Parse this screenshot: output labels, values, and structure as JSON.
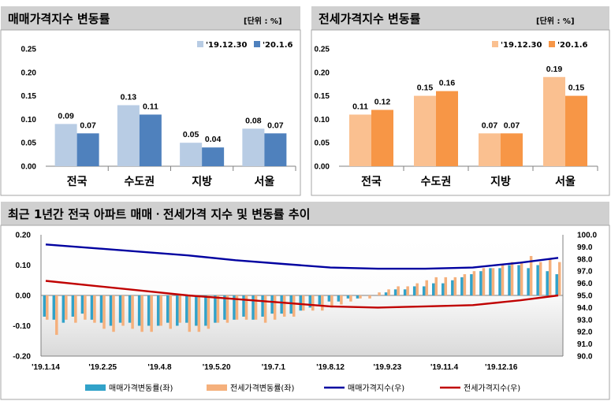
{
  "chart_data": [
    {
      "type": "bar",
      "title": "매매가격지수 변동률",
      "unit_label": "[단위 : %]",
      "categories": [
        "전국",
        "수도권",
        "지방",
        "서울"
      ],
      "series": [
        {
          "name": "'19.12.30",
          "values": [
            0.09,
            0.13,
            0.05,
            0.08
          ],
          "color": "#b8cce4"
        },
        {
          "name": "'20.1.6",
          "values": [
            0.07,
            0.11,
            0.04,
            0.07
          ],
          "color": "#4f81bd"
        }
      ],
      "ylim": [
        0,
        0.25
      ],
      "yticks": [
        "0.25",
        "0.20",
        "0.15",
        "0.10",
        "0.05",
        "0.00"
      ],
      "legend": "top-right"
    },
    {
      "type": "bar",
      "title": "전세가격지수 변동률",
      "unit_label": "[단위 : %]",
      "categories": [
        "전국",
        "수도권",
        "지방",
        "서울"
      ],
      "series": [
        {
          "name": "'19.12.30",
          "values": [
            0.11,
            0.15,
            0.07,
            0.19
          ],
          "color": "#fac090"
        },
        {
          "name": "'20.1.6",
          "values": [
            0.12,
            0.16,
            0.07,
            0.15
          ],
          "color": "#f79646"
        }
      ],
      "ylim": [
        0,
        0.25
      ],
      "yticks": [
        "0.25",
        "0.20",
        "0.15",
        "0.10",
        "0.05",
        "0.00"
      ],
      "legend": "top-right"
    },
    {
      "type": "bar",
      "title": "최근 1년간 전국 아파트 매매ㆍ전세가격 지수 및 변동률 추이",
      "x_tick_labels": [
        "'19.1.14",
        "'19.2.25",
        "'19.4.8",
        "'19.5.20",
        "'19.7.1",
        "'19.8.12",
        "'19.9.23",
        "'19.11.4",
        "'19.12.16"
      ],
      "ylim_left": [
        -0.2,
        0.2
      ],
      "yticks_left": [
        "0.20",
        "0.10",
        "0.00",
        "-0.10",
        "-0.20"
      ],
      "ylim_right": [
        90.0,
        100.0
      ],
      "yticks_right": [
        "100.0",
        "99.0",
        "98.0",
        "97.0",
        "96.0",
        "95.0",
        "94.0",
        "93.0",
        "92.0",
        "91.0",
        "90.0"
      ],
      "series": [
        {
          "name": "매매가격변동률(좌)",
          "kind": "bar",
          "axis": "left",
          "color": "#31a2c9",
          "values": [
            -0.07,
            -0.08,
            -0.09,
            -0.07,
            -0.06,
            -0.08,
            -0.09,
            -0.1,
            -0.09,
            -0.09,
            -0.1,
            -0.1,
            -0.1,
            -0.09,
            -0.1,
            -0.09,
            -0.1,
            -0.1,
            -0.09,
            -0.08,
            -0.08,
            -0.07,
            -0.08,
            -0.07,
            -0.06,
            -0.06,
            -0.06,
            -0.05,
            -0.04,
            -0.03,
            -0.02,
            -0.02,
            -0.01,
            -0.01,
            0.0,
            0.0,
            0.01,
            0.02,
            0.02,
            0.03,
            0.03,
            0.04,
            0.04,
            0.05,
            0.06,
            0.07,
            0.08,
            0.09,
            0.09,
            0.1,
            0.1,
            0.09,
            0.1,
            0.08,
            0.07
          ]
        },
        {
          "name": "전세가격변동률(좌)",
          "kind": "bar",
          "axis": "left",
          "color": "#f5b07c",
          "values": [
            -0.08,
            -0.13,
            -0.08,
            -0.09,
            -0.08,
            -0.09,
            -0.11,
            -0.12,
            -0.1,
            -0.11,
            -0.12,
            -0.12,
            -0.1,
            -0.11,
            -0.09,
            -0.12,
            -0.12,
            -0.11,
            -0.09,
            -0.09,
            -0.08,
            -0.08,
            -0.08,
            -0.09,
            -0.08,
            -0.07,
            -0.07,
            -0.05,
            -0.05,
            -0.05,
            -0.04,
            -0.03,
            -0.02,
            -0.01,
            -0.01,
            0.01,
            0.02,
            0.03,
            0.03,
            0.04,
            0.05,
            0.06,
            0.06,
            0.06,
            0.07,
            0.08,
            0.09,
            0.09,
            0.1,
            0.11,
            0.11,
            0.13,
            0.11,
            0.12,
            0.11
          ]
        },
        {
          "name": "매매가격지수(우)",
          "kind": "line",
          "axis": "right",
          "color": "#0000a0",
          "x": [
            0,
            5,
            10,
            15,
            20,
            25,
            30,
            35,
            40,
            45,
            50,
            54
          ],
          "values": [
            99.2,
            98.9,
            98.6,
            98.3,
            97.9,
            97.6,
            97.3,
            97.2,
            97.2,
            97.3,
            97.7,
            98.1
          ]
        },
        {
          "name": "전세가격지수(우)",
          "kind": "line",
          "axis": "right",
          "color": "#c00000",
          "x": [
            0,
            5,
            10,
            15,
            20,
            25,
            30,
            35,
            40,
            45,
            50,
            54
          ],
          "values": [
            96.2,
            95.8,
            95.4,
            95.0,
            94.7,
            94.4,
            94.1,
            94.0,
            94.1,
            94.2,
            94.6,
            95.0
          ]
        }
      ],
      "legend": "bottom"
    }
  ]
}
